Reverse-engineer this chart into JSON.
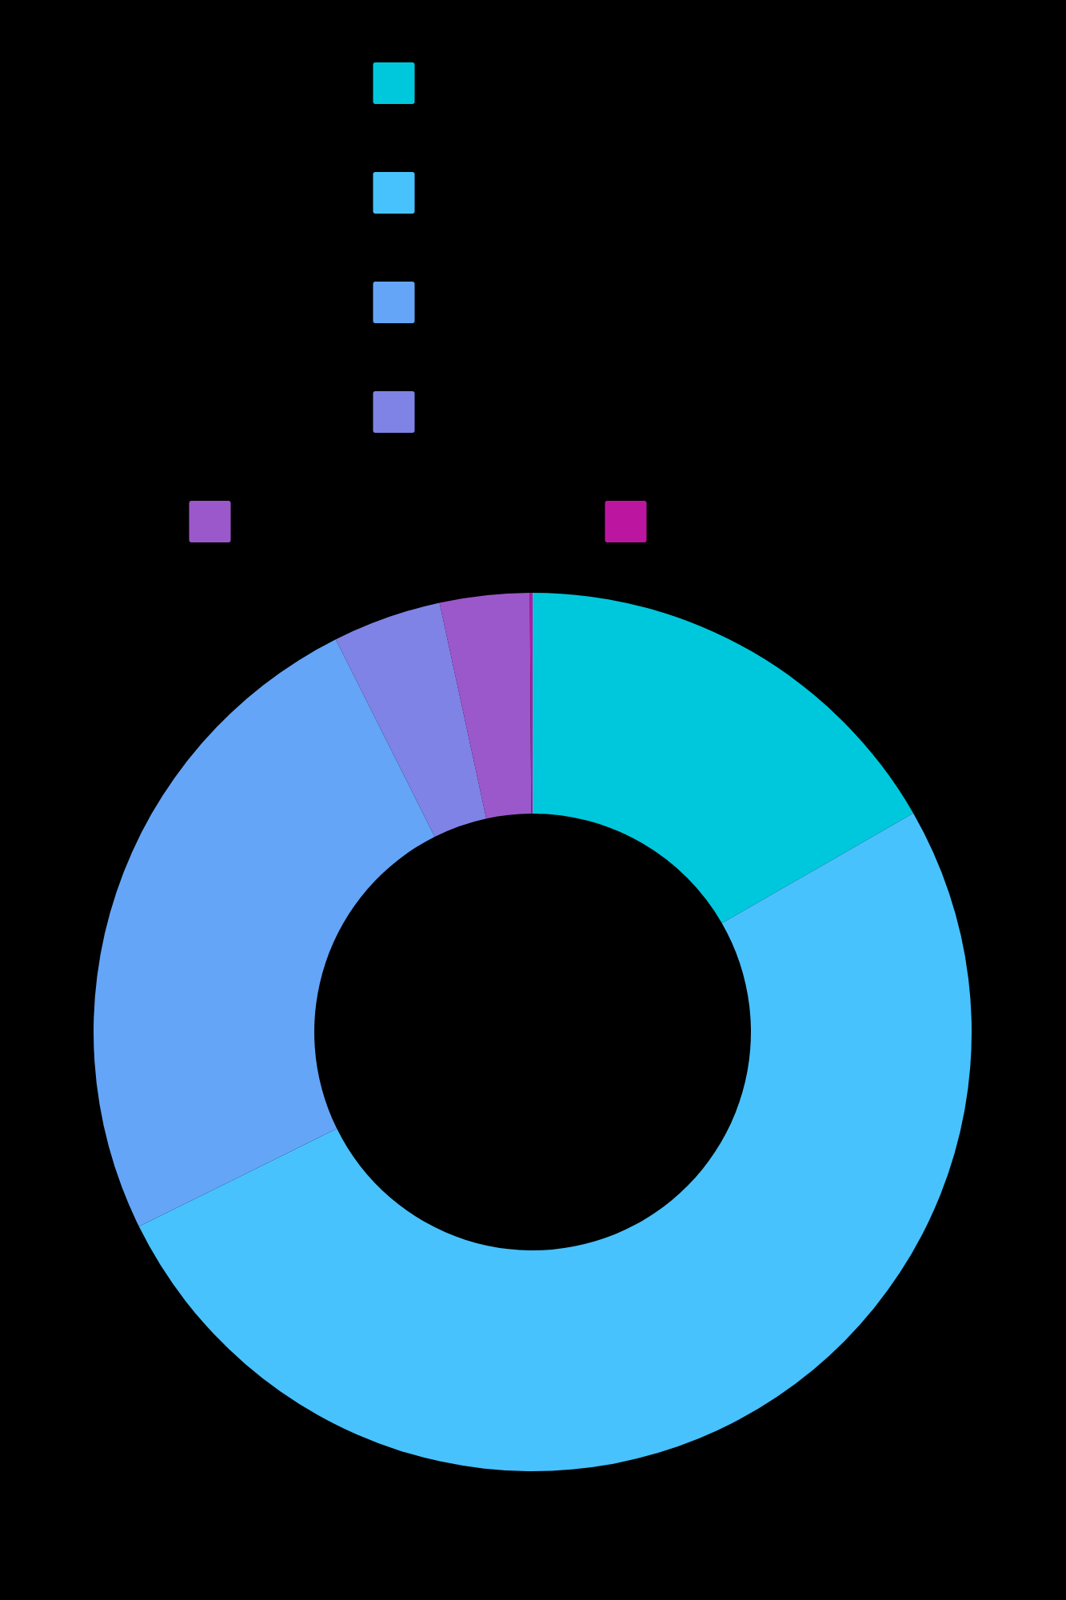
{
  "chart_data": {
    "type": "donut",
    "categories": [
      null,
      null,
      null,
      null,
      null,
      null
    ],
    "values": [
      16.7,
      51.0,
      24.9,
      4.0,
      3.3,
      0.1
    ],
    "colors": [
      "#00c8dc",
      "#48c2fd",
      "#64a5f8",
      "#7f83e6",
      "#9b58ca",
      "#bc16a0"
    ]
  }
}
